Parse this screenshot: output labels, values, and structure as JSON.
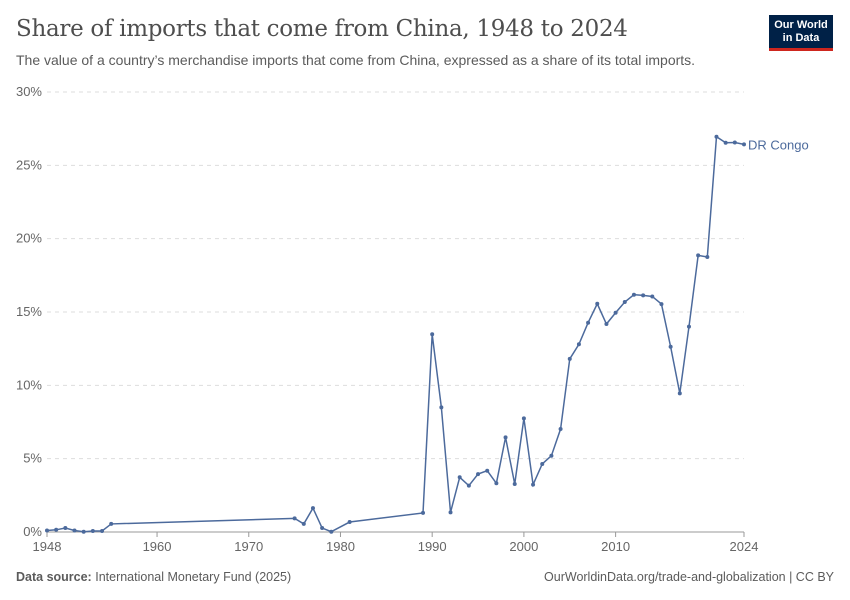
{
  "header": {
    "title": "Share of imports that come from China, 1948 to 2024",
    "subtitle": "The value of a country’s merchandise imports that come from China, expressed as a share of its total imports.",
    "logo": "Our World in Data"
  },
  "footer": {
    "source_label": "Data source:",
    "source": "International Monetary Fund (2025)",
    "right": "OurWorldinData.org/trade-and-globalization | CC BY"
  },
  "chart_data": {
    "type": "line",
    "title": "Share of imports that come from China, 1948 to 2024",
    "ylim": [
      0,
      30
    ],
    "xlim": [
      1948,
      2024
    ],
    "grid": true,
    "yticks": [
      "0%",
      "5%",
      "10%",
      "15%",
      "20%",
      "25%",
      "30%"
    ],
    "xticks": [
      "1948",
      "1960",
      "1970",
      "1980",
      "1990",
      "2000",
      "2010",
      "2024"
    ],
    "line_color": "#4c6a9c",
    "series": [
      {
        "name": "DR Congo",
        "x": [
          1948,
          1949,
          1950,
          1951,
          1952,
          1953,
          1954,
          1955,
          1975,
          1976,
          1977,
          1978,
          1979,
          1981,
          1989,
          1990,
          1991,
          1992,
          1993,
          1994,
          1995,
          1996,
          1997,
          1998,
          1999,
          2000,
          2001,
          2002,
          2003,
          2004,
          2005,
          2006,
          2007,
          2008,
          2009,
          2010,
          2011,
          2012,
          2013,
          2014,
          2015,
          2016,
          2017,
          2018,
          2019,
          2020,
          2021,
          2022,
          2023,
          2024
        ],
        "y": [
          0.1,
          0.15,
          0.27,
          0.1,
          0.02,
          0.07,
          0.07,
          0.55,
          0.93,
          0.55,
          1.63,
          0.27,
          0.02,
          0.68,
          1.3,
          13.48,
          8.5,
          1.34,
          3.73,
          3.16,
          3.95,
          4.18,
          3.32,
          6.45,
          3.27,
          7.75,
          3.23,
          4.64,
          5.2,
          7.02,
          11.8,
          12.8,
          14.27,
          15.56,
          14.18,
          14.95,
          15.68,
          16.18,
          16.13,
          16.06,
          15.54,
          12.63,
          9.45,
          14.0,
          18.86,
          18.75,
          26.95,
          26.54,
          26.56,
          26.43
        ]
      }
    ]
  }
}
